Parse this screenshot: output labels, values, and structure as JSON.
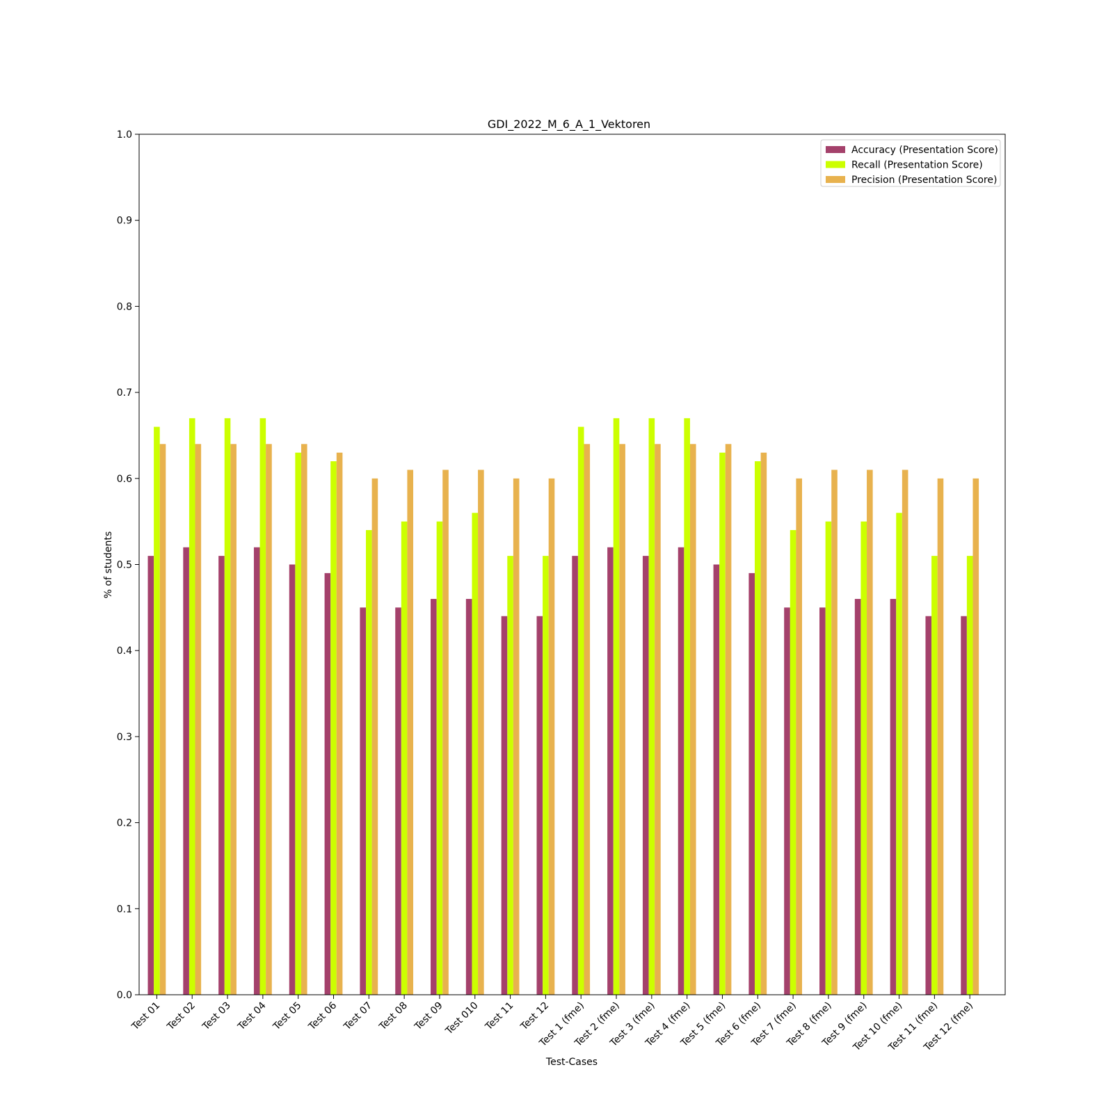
{
  "chart_data": {
    "type": "bar",
    "title": "GDI_2022_M_6_A_1_Vektoren",
    "xlabel": "Test-Cases",
    "ylabel": "% of students",
    "ylim": [
      0,
      1.0
    ],
    "yticks": [
      "0.0",
      "0.1",
      "0.2",
      "0.3",
      "0.4",
      "0.5",
      "0.6",
      "0.7",
      "0.8",
      "0.9",
      "1.0"
    ],
    "legend_position": "top-right",
    "grid": false,
    "categories": [
      "Test 01",
      "Test 02",
      "Test 03",
      "Test 04",
      "Test 05",
      "Test 06",
      "Test 07",
      "Test 08",
      "Test 09",
      "Test 010",
      "Test 11",
      "Test 12",
      "Test 1 (fme)",
      "Test 2 (fme)",
      "Test 3 (fme)",
      "Test 4 (fme)",
      "Test 5 (fme)",
      "Test 6 (fme)",
      "Test 7 (fme)",
      "Test 8 (fme)",
      "Test 9 (fme)",
      "Test 10 (fme)",
      "Test 11 (fme)",
      "Test 12 (fme)"
    ],
    "series": [
      {
        "name": "Accuracy (Presentation Score)",
        "color": "#a4416b",
        "values": [
          0.51,
          0.52,
          0.51,
          0.52,
          0.5,
          0.49,
          0.45,
          0.45,
          0.46,
          0.46,
          0.44,
          0.44,
          0.51,
          0.52,
          0.51,
          0.52,
          0.5,
          0.49,
          0.45,
          0.45,
          0.46,
          0.46,
          0.44,
          0.44
        ]
      },
      {
        "name": "Recall (Presentation Score)",
        "color": "#ccff00",
        "values": [
          0.66,
          0.67,
          0.67,
          0.67,
          0.63,
          0.62,
          0.54,
          0.55,
          0.55,
          0.56,
          0.51,
          0.51,
          0.66,
          0.67,
          0.67,
          0.67,
          0.63,
          0.62,
          0.54,
          0.55,
          0.55,
          0.56,
          0.51,
          0.51
        ]
      },
      {
        "name": "Precision (Presentation Score)",
        "color": "#e8b24e",
        "values": [
          0.64,
          0.64,
          0.64,
          0.64,
          0.64,
          0.63,
          0.6,
          0.61,
          0.61,
          0.61,
          0.6,
          0.6,
          0.64,
          0.64,
          0.64,
          0.64,
          0.64,
          0.63,
          0.6,
          0.61,
          0.61,
          0.61,
          0.6,
          0.6
        ]
      }
    ]
  }
}
